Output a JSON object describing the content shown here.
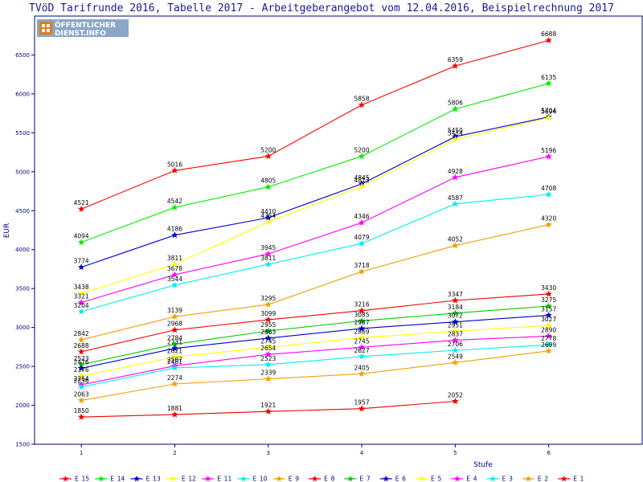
{
  "chart_data": {
    "type": "line",
    "title": "TVöD Tarifrunde 2016, Tabelle 2017 - Arbeitgeberangebot vom 12.04.2016, Beispielrechnung 2017",
    "xlabel": "Stufe",
    "ylabel": "EUR",
    "x": [
      1,
      2,
      3,
      4,
      5,
      6
    ],
    "xlim": [
      0.5,
      7.0
    ],
    "ylim": [
      1500,
      7000
    ],
    "yticks": [
      1500,
      2000,
      2500,
      3000,
      3500,
      4000,
      4500,
      5000,
      5500,
      6000,
      6500
    ],
    "grid": false,
    "legend_position": "bottom",
    "series": [
      {
        "name": "E_15",
        "color": "#ff0000",
        "values": [
          4521,
          5016,
          5200,
          5858,
          6359,
          6688
        ]
      },
      {
        "name": "E_14",
        "color": "#00ee00",
        "values": [
          4094,
          4542,
          4805,
          5200,
          5806,
          6135
        ]
      },
      {
        "name": "E_13",
        "color": "#0000cc",
        "values": [
          3774,
          4186,
          4410,
          4845,
          5450,
          5704
        ]
      },
      {
        "name": "E_12",
        "color": "#ffff00",
        "values": [
          3438,
          3811,
          4354,
          4813,
          5414,
          5694
        ]
      },
      {
        "name": "E_11",
        "color": "#ff00ff",
        "values": [
          3321,
          3678,
          3945,
          4346,
          4928,
          5196
        ]
      },
      {
        "name": "E_10",
        "color": "#00eeee",
        "values": [
          3204,
          3544,
          3811,
          4079,
          4587,
          4708
        ]
      },
      {
        "name": "E_9",
        "color": "#f0a000",
        "values": [
          2842,
          3139,
          3295,
          3718,
          4052,
          4320
        ]
      },
      {
        "name": "E_8",
        "color": "#ee0000",
        "values": [
          2688,
          2968,
          3099,
          3216,
          3347,
          3430
        ]
      },
      {
        "name": "E_7",
        "color": "#00cc00",
        "values": [
          2523,
          2784,
          2955,
          3085,
          3184,
          3275
        ]
      },
      {
        "name": "E_6",
        "color": "#0000cc",
        "values": [
          2476,
          2731,
          2863,
          2987,
          3072,
          3157
        ]
      },
      {
        "name": "E_5",
        "color": "#ffff00",
        "values": [
          2376,
          2621,
          2745,
          2869,
          2951,
          3027
        ]
      },
      {
        "name": "E_4",
        "color": "#ff00ff",
        "values": [
          2264,
          2507,
          2654,
          2745,
          2837,
          2890
        ]
      },
      {
        "name": "E_3",
        "color": "#00eeee",
        "values": [
          2236,
          2481,
          2523,
          2627,
          2706,
          2778
        ]
      },
      {
        "name": "E_2",
        "color": "#f0a000",
        "values": [
          2063,
          2274,
          2339,
          2405,
          2549,
          2699
        ]
      },
      {
        "name": "E_1",
        "color": "#ee0000",
        "values": [
          1850,
          1881,
          1921,
          1957,
          2052,
          null
        ]
      }
    ]
  },
  "logo": {
    "top_text": "ÖFFENTLICHER",
    "bottom_text": "DIENST.INFO"
  },
  "colors": {
    "frame": "#000080",
    "text": "#000080"
  }
}
